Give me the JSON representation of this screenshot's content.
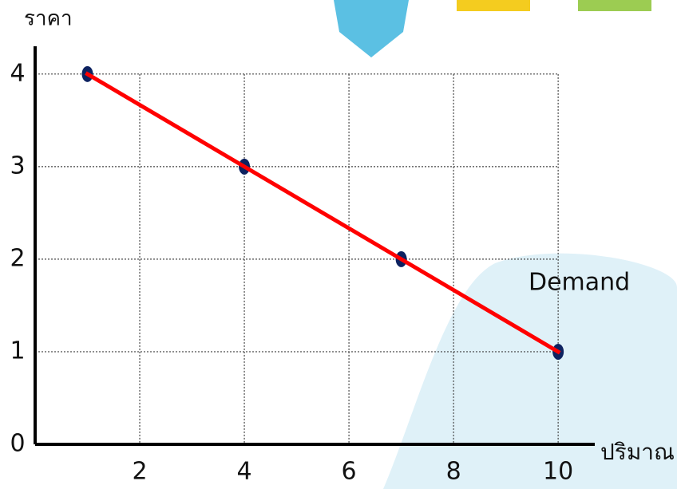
{
  "chart_data": {
    "type": "line",
    "y_label": "ราคา",
    "x_label": "ปริมาณ",
    "annotation": "Demand",
    "x": [
      1,
      4,
      7,
      10
    ],
    "series": [
      {
        "color": "#ff0000",
        "marker_color": "#0d2260",
        "values": [
          4,
          3,
          2,
          1
        ]
      }
    ],
    "xlim": [
      0,
      10.7
    ],
    "ylim": [
      0,
      4.3
    ],
    "xticks": [
      2,
      4,
      6,
      8,
      10
    ],
    "yticks": [
      0,
      1,
      2,
      3,
      4
    ],
    "grid": true
  }
}
